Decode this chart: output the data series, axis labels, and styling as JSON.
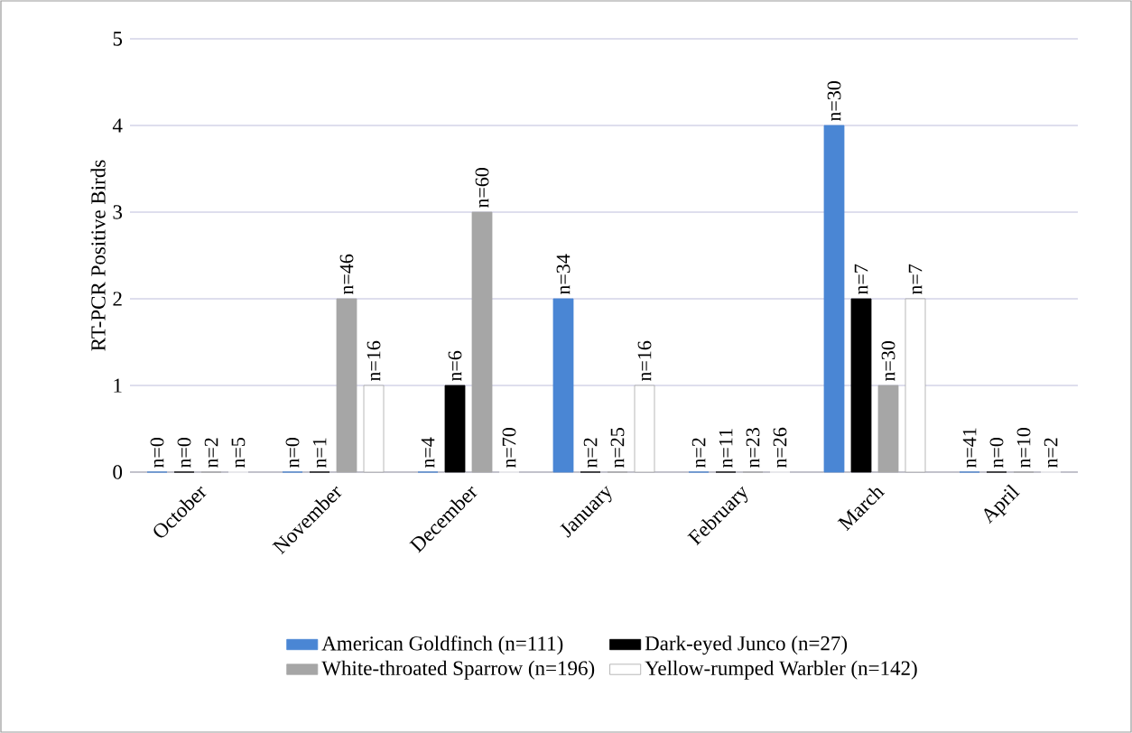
{
  "chart_data": {
    "type": "bar",
    "ylabel": "RT-PCR Positive Birds",
    "categories": [
      "October",
      "November",
      "December",
      "January",
      "February",
      "March",
      "April"
    ],
    "series": [
      {
        "name": "American Goldfinch (n=111)",
        "color": "#4a86d4",
        "values": [
          0,
          0,
          0,
          2,
          0,
          4,
          0
        ]
      },
      {
        "name": "Dark-eyed Junco (n=27)",
        "color": "#000000",
        "values": [
          0,
          0,
          1,
          0,
          0,
          2,
          0
        ]
      },
      {
        "name": "White-throated Sparrow (n=196)",
        "color": "#a6a6a6",
        "values": [
          0,
          2,
          3,
          0,
          0,
          1,
          0
        ]
      },
      {
        "name": "Yellow-rumped Warbler (n=142)",
        "color": "#ffffff",
        "values": [
          0,
          1,
          0,
          1,
          0,
          2,
          0
        ]
      }
    ],
    "annotations": [
      "n=0",
      "n=0",
      "n=2",
      "n=5",
      "n=0",
      "n=1",
      "n=46",
      "n=16",
      "n=4",
      "n=6",
      "n=60",
      "n=70",
      "n=34",
      "n=2",
      "n=25",
      "n=16",
      "n=2",
      "n=11",
      "n=23",
      "n=26",
      "n=30",
      "n=7",
      "n=30",
      "n=7",
      "n=41",
      "n=0",
      "n=10",
      "n=2"
    ],
    "ylim": [
      0,
      5
    ],
    "yticks": [
      0,
      1,
      2,
      3,
      4,
      5
    ],
    "grid": "y",
    "legend": "bottom"
  }
}
